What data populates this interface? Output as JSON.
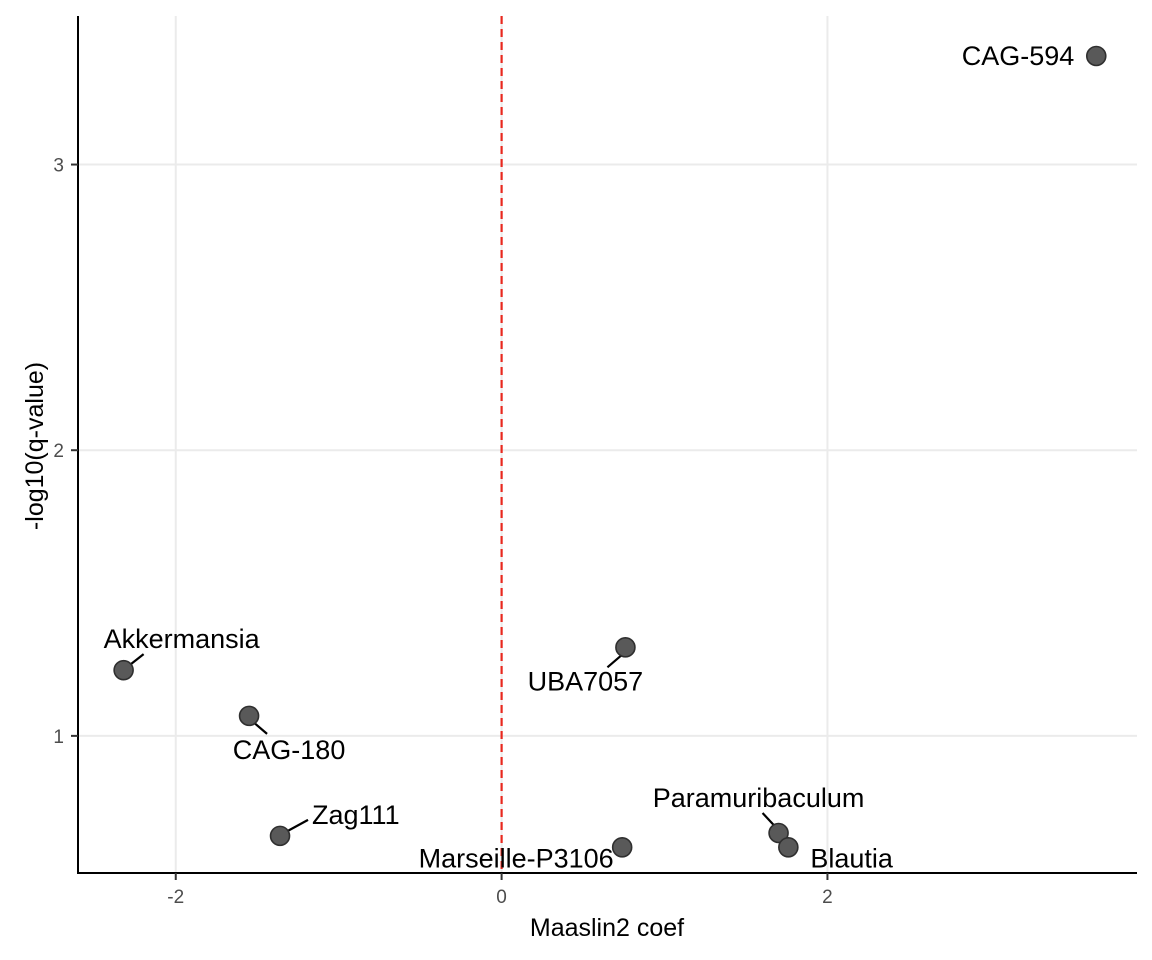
{
  "chart_data": {
    "type": "scatter",
    "title": "",
    "xlabel": "Maaslin2 coef",
    "ylabel": "-log10(q-value)",
    "xlim": [
      -2.6,
      3.9
    ],
    "ylim": [
      0.52,
      3.52
    ],
    "x_ticks": [
      {
        "value": -2,
        "label": "-2"
      },
      {
        "value": 0,
        "label": "0"
      },
      {
        "value": 2,
        "label": "2"
      }
    ],
    "y_ticks": [
      {
        "value": 1,
        "label": "1"
      },
      {
        "value": 2,
        "label": "2"
      },
      {
        "value": 3,
        "label": "3"
      }
    ],
    "grid": true,
    "reference_line": {
      "x": 0,
      "style": "dashed",
      "color": "#e8281e"
    },
    "point_color": "#595959",
    "points": [
      {
        "label": "CAG-594",
        "x": 3.65,
        "y": 3.38
      },
      {
        "label": "UBA7057",
        "x": 0.76,
        "y": 1.31
      },
      {
        "label": "Akkermansia",
        "x": -2.32,
        "y": 1.23
      },
      {
        "label": "CAG-180",
        "x": -1.55,
        "y": 1.07
      },
      {
        "label": "Zag111",
        "x": -1.36,
        "y": 0.65
      },
      {
        "label": "Marseille-P3106",
        "x": 0.74,
        "y": 0.61
      },
      {
        "label": "Paramuribaculum",
        "x": 1.7,
        "y": 0.66
      },
      {
        "label": "Blautia",
        "x": 1.76,
        "y": 0.61
      }
    ]
  }
}
